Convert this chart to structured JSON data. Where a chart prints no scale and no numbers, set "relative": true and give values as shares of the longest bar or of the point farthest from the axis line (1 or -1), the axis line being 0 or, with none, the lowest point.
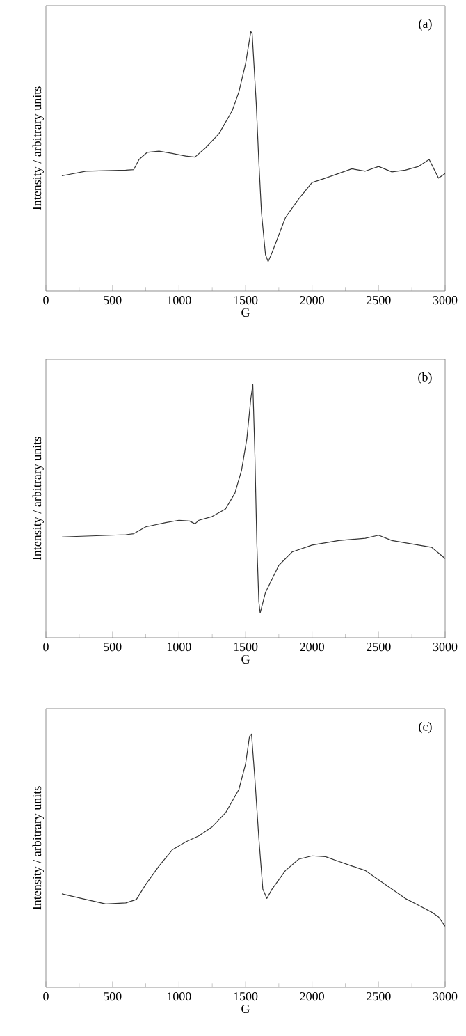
{
  "chart_data": [
    {
      "type": "line",
      "relative": true,
      "xlabel": "G",
      "ylabel": "Intensity / arbitrary units",
      "annotations": [
        "(a)"
      ],
      "xlim": [
        0,
        3000
      ],
      "xticks": [
        0,
        500,
        1000,
        1500,
        2000,
        2500,
        3000
      ],
      "color": "#333333",
      "x": [
        120,
        300,
        600,
        660,
        700,
        760,
        850,
        950,
        1050,
        1120,
        1200,
        1300,
        1400,
        1450,
        1500,
        1540,
        1550,
        1580,
        1600,
        1620,
        1650,
        1670,
        1700,
        1800,
        1900,
        2000,
        2100,
        2200,
        2300,
        2400,
        2500,
        2600,
        2700,
        2800,
        2880,
        2950,
        3000
      ],
      "values": [
        0.444,
        0.462,
        0.466,
        0.468,
        0.507,
        0.534,
        0.539,
        0.53,
        0.52,
        0.516,
        0.552,
        0.606,
        0.695,
        0.767,
        0.875,
        1.0,
        0.991,
        0.728,
        0.498,
        0.301,
        0.14,
        0.113,
        0.149,
        0.283,
        0.355,
        0.418,
        0.435,
        0.453,
        0.471,
        0.462,
        0.48,
        0.459,
        0.466,
        0.48,
        0.507,
        0.435,
        0.453
      ]
    },
    {
      "type": "line",
      "relative": true,
      "xlabel": "G",
      "ylabel": "Intensity / arbitrary units",
      "annotations": [
        "(b)"
      ],
      "xlim": [
        0,
        3000
      ],
      "xticks": [
        0,
        500,
        1000,
        1500,
        2000,
        2500,
        3000
      ],
      "color": "#333333",
      "x": [
        120,
        600,
        660,
        750,
        900,
        1000,
        1080,
        1120,
        1150,
        1250,
        1350,
        1420,
        1470,
        1510,
        1540,
        1555,
        1570,
        1585,
        1600,
        1610,
        1650,
        1750,
        1850,
        2000,
        2200,
        2400,
        2500,
        2600,
        2800,
        2900,
        3000
      ],
      "values": [
        0.398,
        0.407,
        0.411,
        0.438,
        0.455,
        0.464,
        0.461,
        0.45,
        0.464,
        0.479,
        0.509,
        0.571,
        0.661,
        0.786,
        0.946,
        1.0,
        0.732,
        0.375,
        0.143,
        0.098,
        0.179,
        0.286,
        0.339,
        0.366,
        0.384,
        0.393,
        0.405,
        0.384,
        0.366,
        0.357,
        0.313
      ]
    },
    {
      "type": "line",
      "relative": true,
      "xlabel": "G",
      "ylabel": "Intensity / arbitrary units",
      "annotations": [
        "(c)"
      ],
      "xlim": [
        0,
        3000
      ],
      "xticks": [
        0,
        500,
        1000,
        1500,
        2000,
        2500,
        3000
      ],
      "color": "#333333",
      "x": [
        120,
        300,
        450,
        600,
        680,
        750,
        850,
        950,
        1050,
        1150,
        1250,
        1350,
        1450,
        1500,
        1530,
        1545,
        1570,
        1600,
        1630,
        1660,
        1700,
        1800,
        1900,
        2000,
        2100,
        2200,
        2300,
        2400,
        2500,
        2600,
        2700,
        2800,
        2900,
        2950,
        3000
      ],
      "values": [
        0.369,
        0.347,
        0.329,
        0.333,
        0.347,
        0.406,
        0.479,
        0.543,
        0.574,
        0.598,
        0.634,
        0.689,
        0.781,
        0.881,
        0.991,
        1.0,
        0.826,
        0.589,
        0.388,
        0.351,
        0.388,
        0.461,
        0.506,
        0.519,
        0.516,
        0.497,
        0.479,
        0.461,
        0.424,
        0.388,
        0.351,
        0.324,
        0.296,
        0.278,
        0.241
      ]
    }
  ]
}
